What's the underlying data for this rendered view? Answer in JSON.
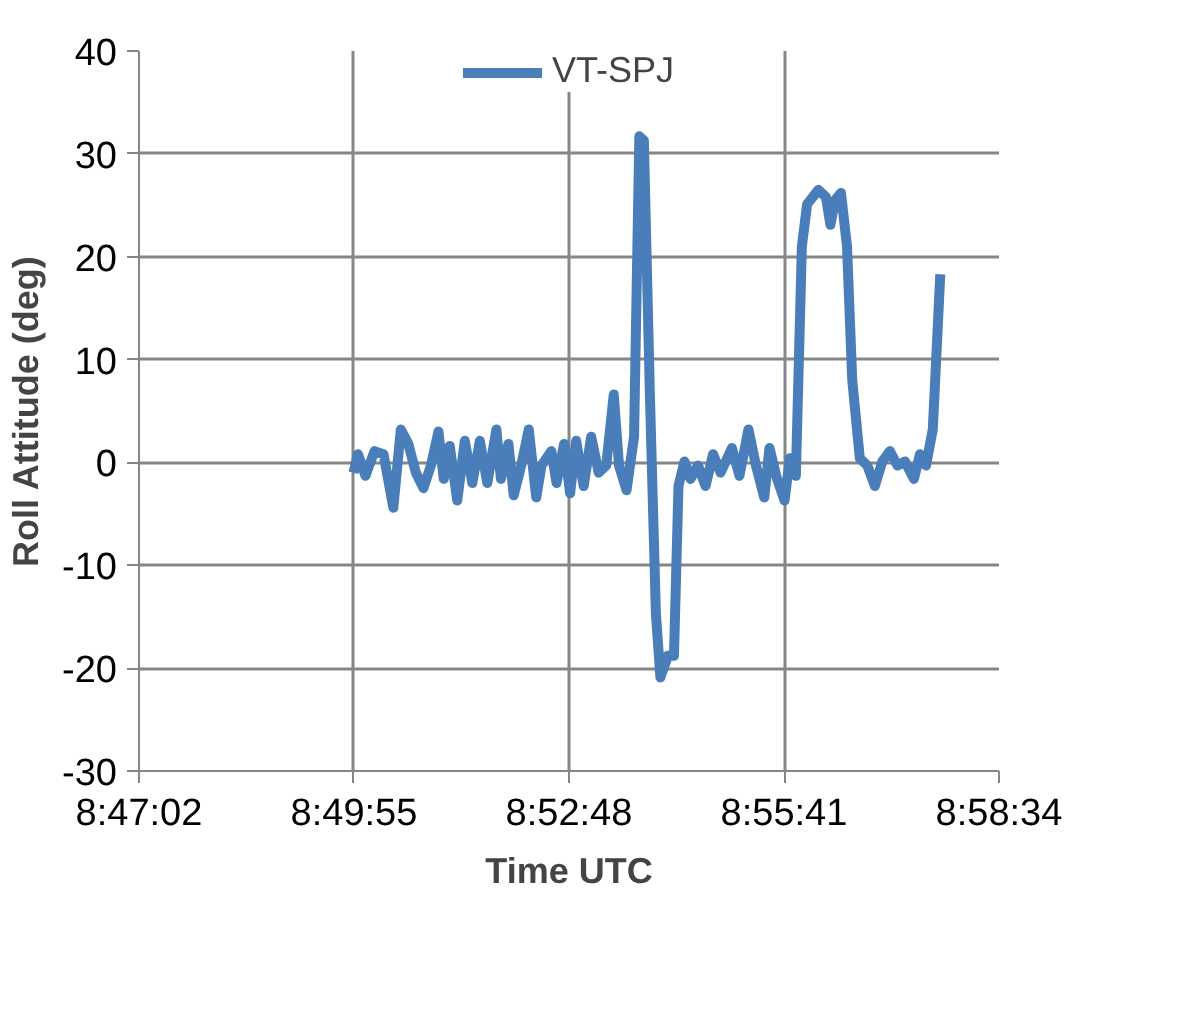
{
  "chart_data": {
    "type": "line",
    "xlabel": "Time UTC",
    "ylabel": "Roll Attitude (deg)",
    "xlim": [
      8.783889,
      8.976111
    ],
    "xticks": [
      {
        "value": 8.783889,
        "label": "8:47:02"
      },
      {
        "value": 8.831944,
        "label": "8:49:55"
      },
      {
        "value": 8.88,
        "label": "8:52:48"
      },
      {
        "value": 8.928056,
        "label": "8:55:41"
      },
      {
        "value": 8.976111,
        "label": "8:58:34"
      }
    ],
    "ylim": [
      -30,
      40
    ],
    "yticks": [
      -30,
      -20,
      -10,
      0,
      10,
      20,
      30,
      40
    ],
    "grid": true,
    "legend": "top",
    "marker": "none",
    "line_style": "solid",
    "x": [
      8.83182,
      8.83283,
      8.83451,
      8.83653,
      8.83854,
      8.84073,
      8.84241,
      8.84409,
      8.84578,
      8.84746,
      8.84914,
      8.85082,
      8.852,
      8.85334,
      8.85503,
      8.85671,
      8.85839,
      8.86007,
      8.86175,
      8.86377,
      8.86478,
      8.86646,
      8.86764,
      8.86932,
      8.871,
      8.87268,
      8.87386,
      8.87605,
      8.87722,
      8.8789,
      8.88025,
      8.8816,
      8.88328,
      8.88496,
      8.88664,
      8.88832,
      8.89,
      8.89118,
      8.89286,
      8.89454,
      8.89572,
      8.89673,
      8.89808,
      8.89942,
      8.90043,
      8.90211,
      8.90346,
      8.90447,
      8.90581,
      8.90716,
      8.90884,
      8.91052,
      8.9122,
      8.91388,
      8.91641,
      8.91809,
      8.92011,
      8.92179,
      8.92364,
      8.92481,
      8.9265,
      8.92818,
      8.92936,
      8.9307,
      8.93205,
      8.93322,
      8.93575,
      8.93743,
      8.93844,
      8.93945,
      8.94079,
      8.94214,
      8.94331,
      8.945,
      8.94668,
      8.94836,
      8.95004,
      8.95172,
      8.9534,
      8.95509,
      8.9571,
      8.95845,
      8.9598,
      8.96131,
      8.96299
    ],
    "series": [
      {
        "name": "VT-SPJ",
        "color": "#4a7ebb",
        "values": [
          -1.0,
          0.8,
          -1.3,
          1.1,
          0.8,
          -4.4,
          3.2,
          1.8,
          -1.0,
          -2.5,
          -0.3,
          3.0,
          -1.6,
          1.6,
          -3.7,
          2.1,
          -2.0,
          2.1,
          -2.0,
          3.2,
          -1.6,
          1.8,
          -3.2,
          -0.3,
          3.2,
          -3.4,
          -0.3,
          1.1,
          -2.0,
          1.8,
          -3.0,
          2.1,
          -2.3,
          2.5,
          -1.0,
          -0.3,
          6.6,
          -0.3,
          -2.7,
          2.5,
          31.7,
          31.3,
          6.6,
          -14.7,
          -20.9,
          -18.8,
          -18.8,
          -2.3,
          0.1,
          -1.6,
          -0.3,
          -2.3,
          0.8,
          -1.0,
          1.4,
          -1.3,
          3.2,
          -0.3,
          -3.4,
          1.4,
          -1.6,
          -3.7,
          0.4,
          -1.3,
          21.0,
          25.1,
          26.5,
          25.8,
          23.1,
          25.5,
          26.2,
          21.0,
          8.0,
          0.4,
          -0.3,
          -2.3,
          0.1,
          1.1,
          -0.3,
          0.1,
          -1.6,
          0.8,
          -0.3,
          3.2,
          18.3
        ]
      }
    ]
  }
}
